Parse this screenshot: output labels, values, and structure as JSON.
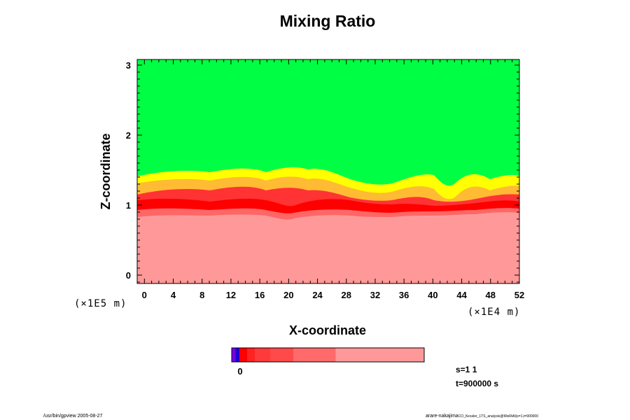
{
  "chart_data": {
    "type": "heatmap",
    "title": "Mixing Ratio",
    "xlabel": "X-coordinate",
    "ylabel": "Z-coordinate",
    "x_scale_label": "(×1E4 m)",
    "y_scale_label": "(×1E5 m)",
    "xlim": [
      -1,
      52
    ],
    "ylim": [
      -0.12,
      3.08
    ],
    "xticks": [
      0,
      4,
      8,
      12,
      16,
      20,
      24,
      28,
      32,
      36,
      40,
      44,
      48,
      52
    ],
    "yticks": [
      0,
      1,
      2,
      3
    ],
    "regions": [
      {
        "level": "high",
        "color": "#00ff44",
        "z_top": 3.08
      },
      {
        "level": "mid",
        "color": "#ffff00"
      },
      {
        "level": "low",
        "color": "#ff0000"
      },
      {
        "level": "base",
        "color": "#ff9999",
        "z_top": 0.92
      }
    ],
    "colorbar": {
      "segments": [
        {
          "color": "#7700ee",
          "w": 1
        },
        {
          "color": "#2200cc",
          "w": 1
        },
        {
          "color": "#ff0000",
          "w": 2
        },
        {
          "color": "#ff2222",
          "w": 2
        },
        {
          "color": "#ff3a3a",
          "w": 4
        },
        {
          "color": "#ff4a4a",
          "w": 6
        },
        {
          "color": "#ff6b6b",
          "w": 11
        },
        {
          "color": "#ff9999",
          "w": 23
        }
      ],
      "tick_label": "0"
    }
  },
  "info": {
    "s_label": "s=1 1",
    "t_label": "t=900000 s"
  },
  "footer": {
    "left": "/usr/bin/gpview 2005-08-27",
    "right": "arare-nakajima",
    "right_small": "CO_Kessler_1TS_analysis@MixRtAl(s=1,t=900000"
  }
}
